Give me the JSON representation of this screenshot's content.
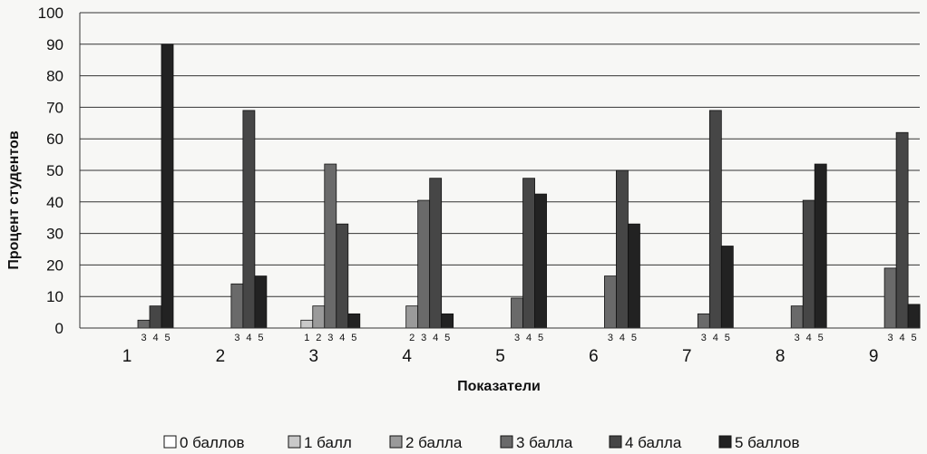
{
  "chart_data": {
    "type": "bar",
    "title": "",
    "xlabel": "Показатели",
    "ylabel": "Процент студентов",
    "ylim": [
      0,
      100
    ],
    "yticks": [
      0,
      10,
      20,
      30,
      40,
      50,
      60,
      70,
      80,
      90,
      100
    ],
    "grid": true,
    "legend_position": "bottom",
    "categories": [
      "1",
      "2",
      "3",
      "4",
      "5",
      "6",
      "7",
      "8",
      "9"
    ],
    "series": [
      {
        "name": "0 баллов",
        "short": "0",
        "color": "#ffffff",
        "values": [
          0,
          0,
          0,
          0,
          0,
          0,
          0,
          0,
          0
        ]
      },
      {
        "name": "1 балл",
        "short": "1",
        "color": "#c9c9c9",
        "values": [
          0,
          0,
          2.5,
          0,
          0,
          0,
          0,
          0,
          0
        ]
      },
      {
        "name": "2 балла",
        "short": "2",
        "color": "#9a9a9a",
        "values": [
          0,
          0,
          7,
          7,
          0,
          0,
          0,
          0,
          0
        ]
      },
      {
        "name": "3 балла",
        "short": "3",
        "color": "#6a6a6a",
        "values": [
          2.5,
          14,
          52,
          40.5,
          9.5,
          16.5,
          4.5,
          7,
          19
        ]
      },
      {
        "name": "4 балла",
        "short": "4",
        "color": "#464646",
        "values": [
          7,
          69,
          33,
          47.5,
          47.5,
          50,
          69,
          40.5,
          62
        ]
      },
      {
        "name": "5 баллов",
        "short": "5",
        "color": "#222222",
        "values": [
          90,
          16.5,
          4.5,
          4.5,
          42.5,
          33,
          26,
          52,
          7.5
        ]
      }
    ]
  }
}
